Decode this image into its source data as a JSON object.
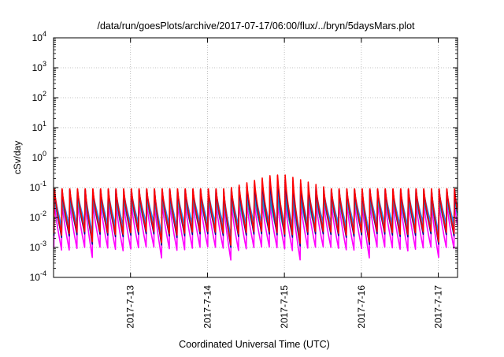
{
  "chart_data": {
    "type": "line",
    "title": "/data/run/goesPlots/archive/2017-07-17/06:00/flux/../bryn/5daysMars.plot",
    "xlabel": "Coordinated Universal Time (UTC)",
    "ylabel": "cSv/day",
    "y_scale": "log",
    "ylim_exponents": [
      -4,
      4
    ],
    "y_tick_exponents": [
      -4,
      -3,
      -2,
      -1,
      0,
      1,
      2,
      3,
      4
    ],
    "xlim_days": [
      "2017-07-12",
      "2017-07-17 06:00"
    ],
    "x_ticks": [
      "2017-7-13",
      "2017-7-14",
      "2017-7-15",
      "2017-7-16",
      "2017-7-17"
    ],
    "grid": true,
    "legend": "none",
    "cycles_per_day": 10,
    "series": [
      {
        "color": "#ff0000",
        "peak": 0.09,
        "trough": 0.003
      },
      {
        "color": "#000090",
        "peak": 0.085,
        "trough": 0.0025
      },
      {
        "color": "#1e90ff",
        "peak": 0.075,
        "trough": 0.006
      },
      {
        "color": "#2a7fd4",
        "peak": 0.06,
        "trough": 0.004
      },
      {
        "color": "#20b2aa",
        "peak": 0.045,
        "trough": 0.003
      },
      {
        "color": "#ff00ff",
        "peak": 0.03,
        "trough": 0.0009
      }
    ],
    "elevated_period": [
      "2017-07-14 06:00",
      "2017-07-15 12:00"
    ],
    "elevated_peak": 0.28
  }
}
